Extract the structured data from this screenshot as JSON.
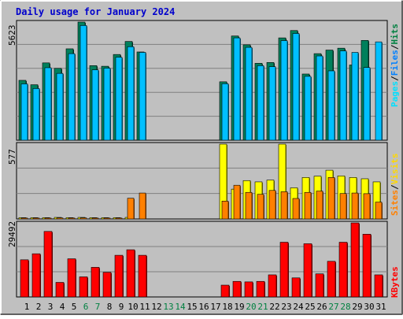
{
  "title": "Daily usage for January 2024",
  "colors": {
    "frame_bg": "#c0c0c0",
    "plot_bg": "#c0c0c0",
    "grid": "#808080",
    "title": "#0000cc",
    "hits": "#00805c",
    "files": "#00c0ff",
    "pages": "#00e0ff",
    "visits": "#ffff00",
    "sites": "#ff8000",
    "kbytes": "#ff0000",
    "weekday_label": "#000000",
    "weekend_label": "#008040"
  },
  "axis_max_labels": {
    "hits": "5623",
    "visits": "577",
    "kbytes": "29492"
  },
  "legend": {
    "top": [
      {
        "text": "Pages",
        "color": "#00e0ff"
      },
      {
        "text": "/",
        "color": "#000000"
      },
      {
        "text": "Files",
        "color": "#0080ff"
      },
      {
        "text": "/",
        "color": "#000000"
      },
      {
        "text": "Hits",
        "color": "#008040"
      }
    ],
    "middle": [
      {
        "text": "Sites",
        "color": "#ff8000"
      },
      {
        "text": "/",
        "color": "#000000"
      },
      {
        "text": "Visits",
        "color": "#ffd800"
      }
    ],
    "bottom": [
      {
        "text": "KBytes",
        "color": "#ff0000"
      }
    ]
  },
  "chart_data": [
    {
      "type": "bar",
      "title": "Daily usage for January 2024",
      "panel": "hits-files",
      "categories": [
        "1",
        "2",
        "3",
        "4",
        "5",
        "6",
        "7",
        "8",
        "9",
        "10",
        "11",
        "12",
        "13",
        "14",
        "15",
        "16",
        "17",
        "18",
        "19",
        "20",
        "21",
        "22",
        "23",
        "24",
        "25",
        "26",
        "27",
        "28",
        "29",
        "30",
        "31"
      ],
      "weekend_days": [
        "6",
        "7",
        "13",
        "14",
        "20",
        "21",
        "27",
        "28"
      ],
      "ylim": [
        0,
        5623
      ],
      "series": [
        {
          "name": "Hits",
          "values": [
            2850,
            2640,
            3680,
            3420,
            4350,
            5623,
            3550,
            3520,
            4080,
            4700,
            4200,
            0,
            0,
            0,
            0,
            0,
            0,
            2780,
            4960,
            4540,
            3660,
            3700,
            4870,
            5220,
            3150,
            4120,
            4290,
            4380,
            3580,
            4750,
            0
          ]
        },
        {
          "name": "Files",
          "values": [
            2680,
            2460,
            3450,
            3180,
            4120,
            5460,
            3350,
            3430,
            3950,
            4450,
            4180,
            0,
            0,
            0,
            0,
            0,
            0,
            2690,
            4870,
            4420,
            3550,
            3500,
            4740,
            5080,
            3040,
            4010,
            3300,
            4250,
            4180,
            3460,
            4680
          ]
        }
      ]
    },
    {
      "type": "bar",
      "panel": "visits-sites",
      "categories": [
        "1",
        "2",
        "3",
        "4",
        "5",
        "6",
        "7",
        "8",
        "9",
        "10",
        "11",
        "12",
        "13",
        "14",
        "15",
        "16",
        "17",
        "18",
        "19",
        "20",
        "21",
        "22",
        "23",
        "24",
        "25",
        "26",
        "27",
        "28",
        "29",
        "30",
        "31"
      ],
      "ylim": [
        0,
        577
      ],
      "series": [
        {
          "name": "Visits",
          "values": [
            10,
            10,
            10,
            12,
            10,
            12,
            10,
            10,
            10,
            12,
            0,
            0,
            0,
            0,
            0,
            0,
            0,
            577,
            230,
            296,
            286,
            300,
            577,
            240,
            320,
            330,
            376,
            332,
            320,
            310,
            286
          ]
        },
        {
          "name": "Sites",
          "values": [
            7,
            7,
            7,
            8,
            7,
            8,
            7,
            7,
            7,
            160,
            200,
            0,
            0,
            0,
            0,
            0,
            0,
            138,
            260,
            205,
            190,
            220,
            210,
            158,
            205,
            215,
            320,
            196,
            200,
            195,
            130
          ]
        }
      ]
    },
    {
      "type": "bar",
      "panel": "kbytes",
      "categories": [
        "1",
        "2",
        "3",
        "4",
        "5",
        "6",
        "7",
        "8",
        "9",
        "10",
        "11",
        "12",
        "13",
        "14",
        "15",
        "16",
        "17",
        "18",
        "19",
        "20",
        "21",
        "22",
        "23",
        "24",
        "25",
        "26",
        "27",
        "28",
        "29",
        "30",
        "31"
      ],
      "ylim": [
        0,
        29492
      ],
      "series": [
        {
          "name": "KBytes",
          "values": [
            14800,
            17200,
            26100,
            5800,
            15200,
            8000,
            11800,
            9800,
            16600,
            18800,
            16600,
            0,
            0,
            0,
            0,
            0,
            0,
            4700,
            6200,
            6000,
            6200,
            8800,
            21800,
            7600,
            21200,
            9200,
            14200,
            21800,
            29492,
            25000,
            8800
          ]
        }
      ]
    }
  ]
}
